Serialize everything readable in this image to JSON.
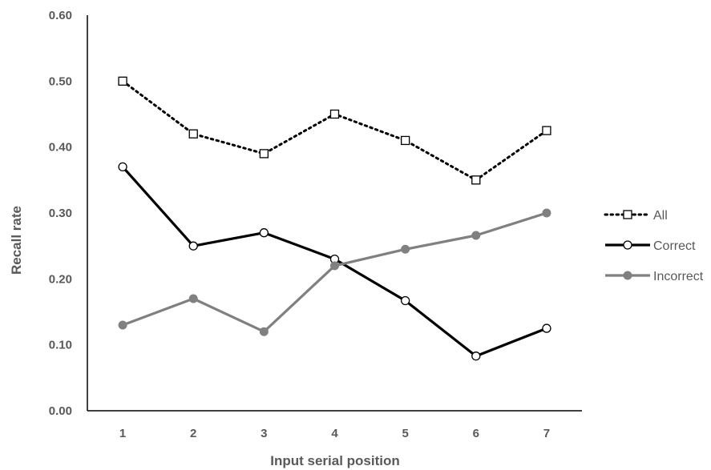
{
  "chart_data": {
    "type": "line",
    "title": "",
    "xlabel": "Input serial position",
    "ylabel": "Recall rate",
    "categories": [
      "1",
      "2",
      "3",
      "4",
      "5",
      "6",
      "7"
    ],
    "y_ticks": [
      "0.00",
      "0.10",
      "0.20",
      "0.30",
      "0.40",
      "0.50",
      "0.60"
    ],
    "ylim": [
      0,
      0.6
    ],
    "grid": false,
    "legend_position": "right",
    "series": [
      {
        "name": "All",
        "values": [
          0.5,
          0.42,
          0.39,
          0.45,
          0.41,
          0.35,
          0.425
        ],
        "color": "#000000",
        "line_style": "dotted",
        "marker": "square-open"
      },
      {
        "name": "Correct",
        "values": [
          0.37,
          0.25,
          0.27,
          0.23,
          0.167,
          0.083,
          0.125
        ],
        "color": "#000000",
        "line_style": "solid",
        "marker": "circle-open"
      },
      {
        "name": "Incorrect",
        "values": [
          0.13,
          0.17,
          0.12,
          0.22,
          0.245,
          0.266,
          0.3
        ],
        "color": "#808080",
        "line_style": "solid",
        "marker": "circle-filled"
      }
    ]
  }
}
